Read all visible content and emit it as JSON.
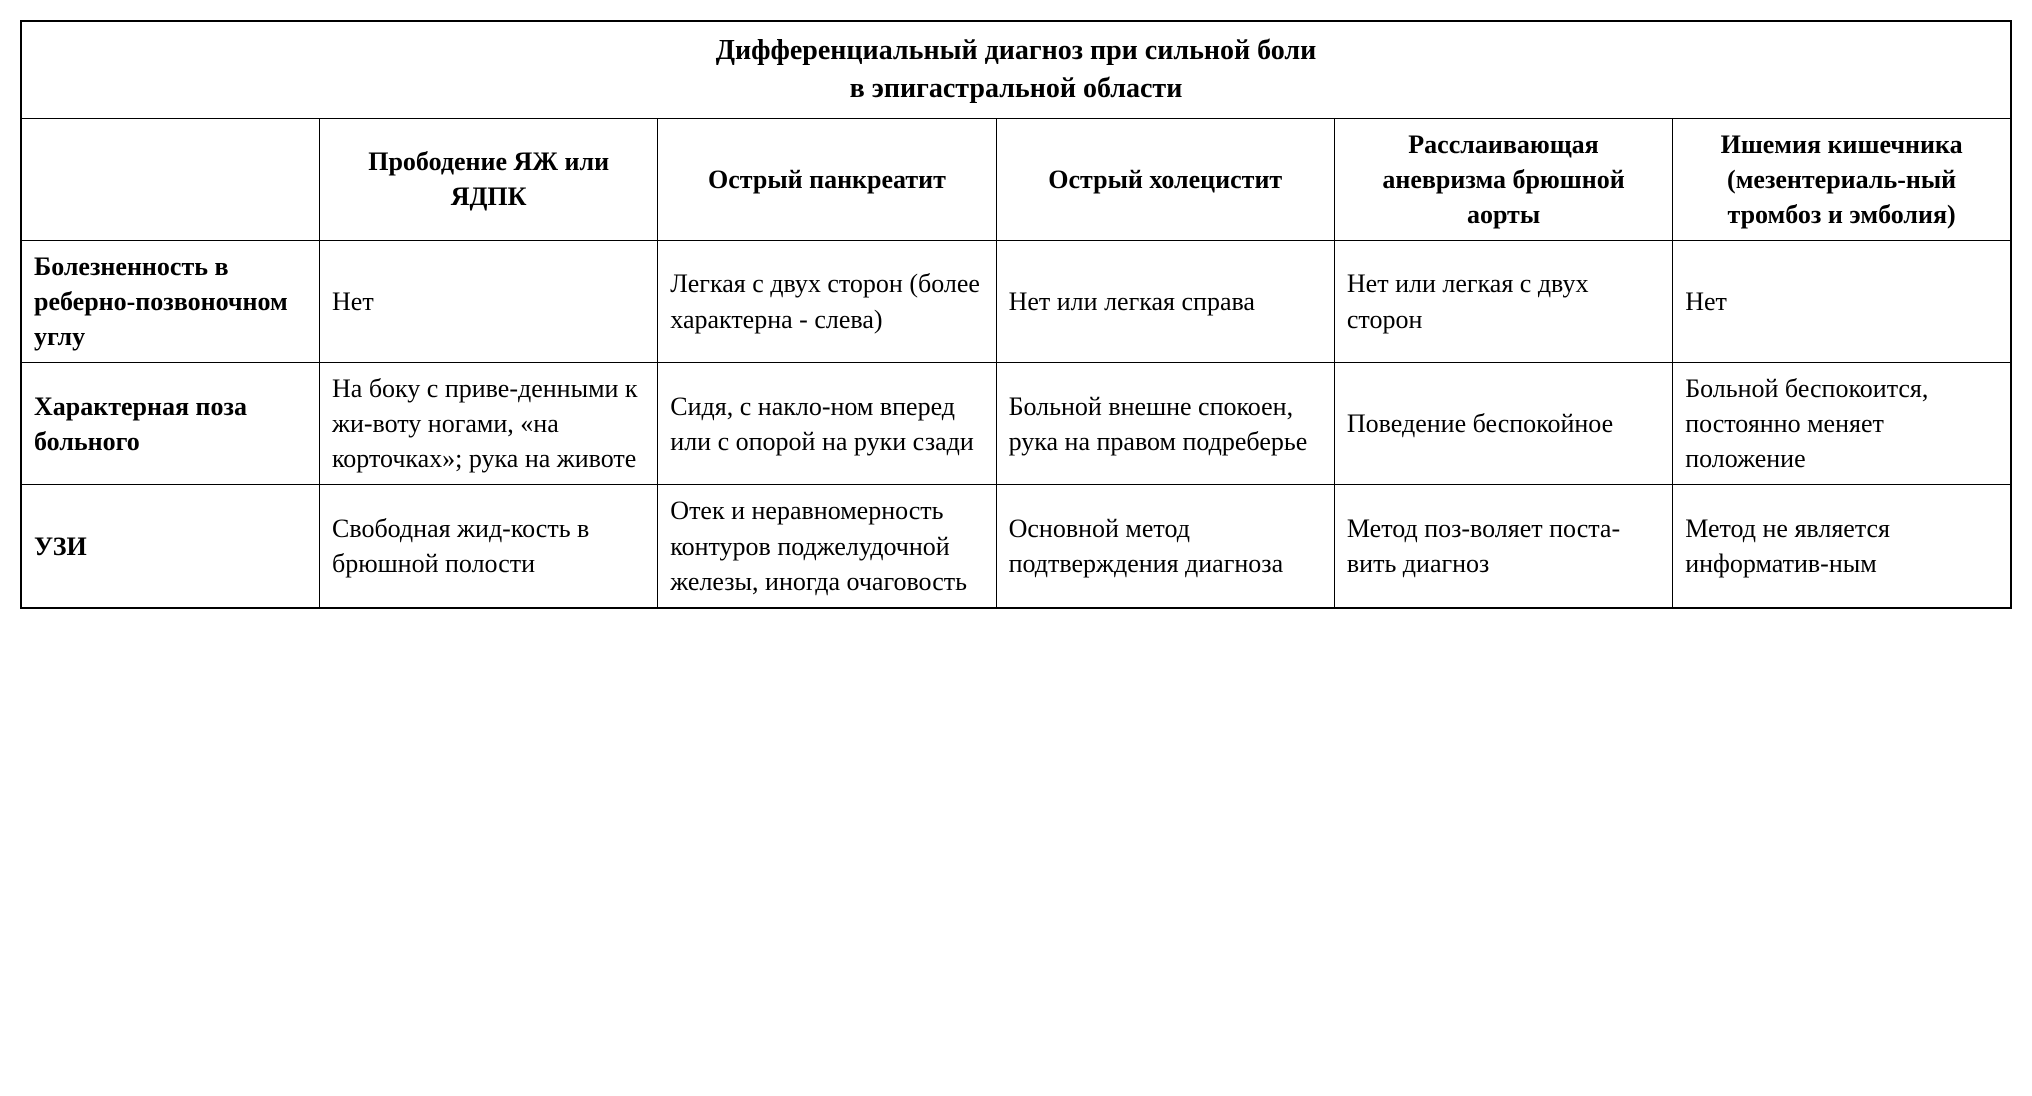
{
  "table": {
    "type": "table",
    "title_line1": "Дифференциальный диагноз при сильной боли",
    "title_line2": "в эпигастральной области",
    "background_color": "#ffffff",
    "border_color": "#000000",
    "text_color": "#000000",
    "font_family": "Times New Roman",
    "title_fontsize": 28,
    "cell_fontsize": 26,
    "border_width": 1.5,
    "columns": [
      {
        "label": "",
        "width_pct": 15
      },
      {
        "label": "Прободение ЯЖ или ЯДПК",
        "width_pct": 17
      },
      {
        "label": "Острый панкреатит",
        "width_pct": 17
      },
      {
        "label": "Острый холецистит",
        "width_pct": 17
      },
      {
        "label": "Расслаивающая аневризма брюшной аорты",
        "width_pct": 17
      },
      {
        "label": "Ишемия кишечника (мезентериаль-ный тромбоз и эмболия)",
        "width_pct": 17
      }
    ],
    "rows": [
      {
        "label": "Болезненность в реберно-позвоночном углу",
        "cells": [
          "Нет",
          "Легкая с двух сторон (более характерна - слева)",
          "Нет или легкая справа",
          "Нет или легкая с двух сторон",
          "Нет"
        ]
      },
      {
        "label": "Характерная поза больного",
        "cells": [
          "На боку с приве-денными к жи-воту ногами, «на корточках»; рука на животе",
          "Сидя, с накло-ном вперед или с опорой на руки сзади",
          "Больной внешне спокоен, рука на правом подреберье",
          "Поведение беспокойное",
          "Больной беспокоится, постоянно меняет положение"
        ]
      },
      {
        "label": "УЗИ",
        "cells": [
          "Свободная жид-кость в брюшной полости",
          "Отек и неравномерность контуров поджелудочной железы, иногда очаговость",
          "Основной метод подтверждения диагноза",
          "Метод поз-воляет поста-вить диагноз",
          "Метод не является информатив-ным"
        ]
      }
    ]
  }
}
